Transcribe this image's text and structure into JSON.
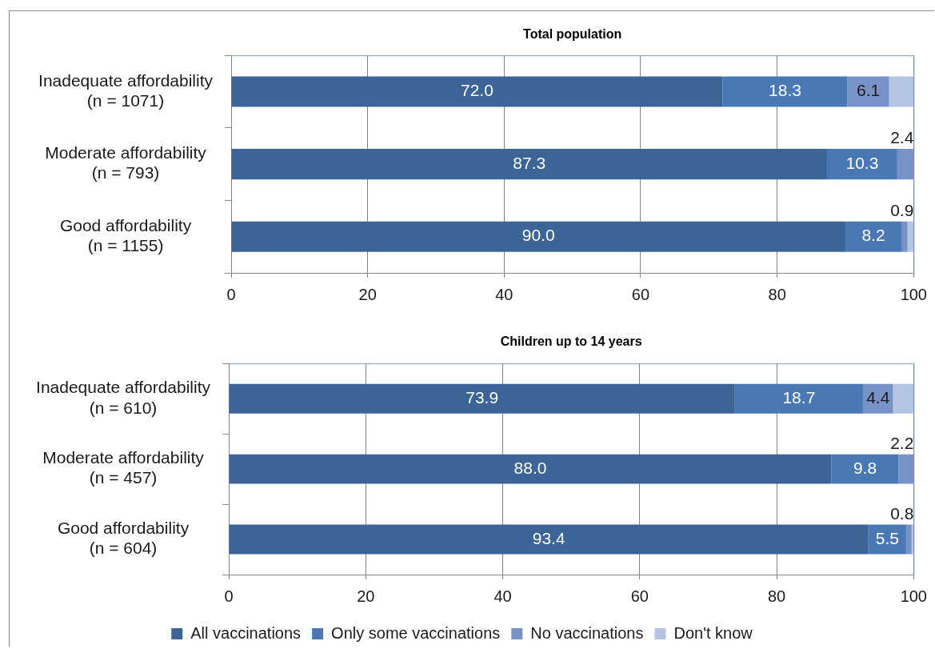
{
  "chart_data": [
    {
      "type": "bar",
      "orientation": "horizontal",
      "stacked": true,
      "title": "Total population",
      "categories": [
        "Inadequate affordability\n(n = 1071)",
        "Moderate affordability\n(n = 793)",
        "Good affordability\n(n = 1155)"
      ],
      "series": [
        {
          "color": "#3c6497",
          "values": [
            72.0,
            87.3,
            90.0
          ],
          "value_labels": [
            "72.0",
            "87.3",
            "90.0"
          ]
        },
        {
          "color": "#4a78b5",
          "values": [
            18.3,
            10.3,
            8.2
          ],
          "value_labels": [
            "18.3",
            "10.3",
            "8.2"
          ]
        },
        {
          "color": "#7692c7",
          "values": [
            6.1,
            2.4,
            0.9
          ],
          "value_labels": [
            "6.1",
            "2.4",
            "0.9"
          ]
        },
        {
          "color": "#b4c4e3",
          "values": [
            3.6,
            0,
            0.9
          ]
        }
      ],
      "xlim": [
        0,
        100
      ],
      "xticks": [
        0,
        20,
        40,
        60,
        80,
        100
      ],
      "grid": "x",
      "legend": false
    },
    {
      "type": "bar",
      "orientation": "horizontal",
      "stacked": true,
      "title": "Children up to 14 years",
      "categories": [
        "Inadequate affordability\n(n = 610)",
        "Moderate affordability\n(n = 457)",
        "Good affordability\n(n = 604)"
      ],
      "series": [
        {
          "name": "All vaccinations",
          "color": "#3c6497",
          "values": [
            73.9,
            88.0,
            93.4
          ],
          "value_labels": [
            "73.9",
            "88.0",
            "93.4"
          ]
        },
        {
          "name": "Only some vaccinations",
          "color": "#4a78b5",
          "values": [
            18.7,
            9.8,
            5.5
          ],
          "value_labels": [
            "18.7",
            "9.8",
            "5.5"
          ]
        },
        {
          "name": "No vaccinations",
          "color": "#7692c7",
          "values": [
            4.4,
            2.2,
            0.8
          ],
          "value_labels": [
            "4.4",
            "2.2",
            "0.8"
          ]
        },
        {
          "name": "Don't know",
          "color": "#b4c4e3",
          "values": [
            3.0,
            0,
            0.3
          ]
        }
      ],
      "xlim": [
        0,
        100
      ],
      "xticks": [
        0,
        20,
        40,
        60,
        80,
        100
      ],
      "grid": "x",
      "legend": "bottom"
    }
  ]
}
